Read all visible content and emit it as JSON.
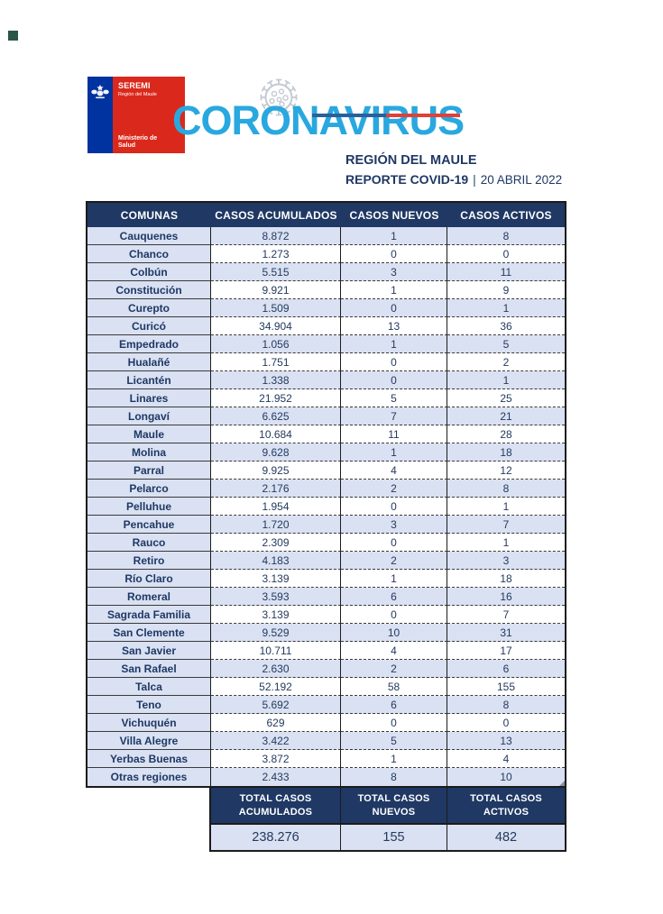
{
  "header": {
    "logo": {
      "seremi": "SEREMI",
      "region": "Región del Maule",
      "ministry": "Ministerio de\nSalud"
    },
    "brand": "CORONAVIRUS",
    "region_title": "REGIÓN DEL MAULE",
    "report_label": "REPORTE COVID-19",
    "separator": "|",
    "report_date": "20 ABRIL 2022"
  },
  "table": {
    "columns": [
      "COMUNAS",
      "CASOS ACUMULADOS",
      "CASOS NUEVOS",
      "CASOS ACTIVOS"
    ],
    "rows": [
      {
        "comuna": "Cauquenes",
        "acumulados": "8.872",
        "nuevos": "1",
        "activos": "8"
      },
      {
        "comuna": "Chanco",
        "acumulados": "1.273",
        "nuevos": "0",
        "activos": "0"
      },
      {
        "comuna": "Colbún",
        "acumulados": "5.515",
        "nuevos": "3",
        "activos": "11"
      },
      {
        "comuna": "Constitución",
        "acumulados": "9.921",
        "nuevos": "1",
        "activos": "9"
      },
      {
        "comuna": "Curepto",
        "acumulados": "1.509",
        "nuevos": "0",
        "activos": "1"
      },
      {
        "comuna": "Curicó",
        "acumulados": "34.904",
        "nuevos": "13",
        "activos": "36"
      },
      {
        "comuna": "Empedrado",
        "acumulados": "1.056",
        "nuevos": "1",
        "activos": "5"
      },
      {
        "comuna": "Hualañé",
        "acumulados": "1.751",
        "nuevos": "0",
        "activos": "2"
      },
      {
        "comuna": "Licantén",
        "acumulados": "1.338",
        "nuevos": "0",
        "activos": "1"
      },
      {
        "comuna": "Linares",
        "acumulados": "21.952",
        "nuevos": "5",
        "activos": "25"
      },
      {
        "comuna": "Longaví",
        "acumulados": "6.625",
        "nuevos": "7",
        "activos": "21"
      },
      {
        "comuna": "Maule",
        "acumulados": "10.684",
        "nuevos": "11",
        "activos": "28"
      },
      {
        "comuna": "Molina",
        "acumulados": "9.628",
        "nuevos": "1",
        "activos": "18"
      },
      {
        "comuna": "Parral",
        "acumulados": "9.925",
        "nuevos": "4",
        "activos": "12"
      },
      {
        "comuna": "Pelarco",
        "acumulados": "2.176",
        "nuevos": "2",
        "activos": "8"
      },
      {
        "comuna": "Pelluhue",
        "acumulados": "1.954",
        "nuevos": "0",
        "activos": "1"
      },
      {
        "comuna": "Pencahue",
        "acumulados": "1.720",
        "nuevos": "3",
        "activos": "7"
      },
      {
        "comuna": "Rauco",
        "acumulados": "2.309",
        "nuevos": "0",
        "activos": "1"
      },
      {
        "comuna": "Retiro",
        "acumulados": "4.183",
        "nuevos": "2",
        "activos": "3"
      },
      {
        "comuna": "Río Claro",
        "acumulados": "3.139",
        "nuevos": "1",
        "activos": "18"
      },
      {
        "comuna": "Romeral",
        "acumulados": "3.593",
        "nuevos": "6",
        "activos": "16"
      },
      {
        "comuna": "Sagrada Familia",
        "acumulados": "3.139",
        "nuevos": "0",
        "activos": "7"
      },
      {
        "comuna": "San Clemente",
        "acumulados": "9.529",
        "nuevos": "10",
        "activos": "31"
      },
      {
        "comuna": "San Javier",
        "acumulados": "10.711",
        "nuevos": "4",
        "activos": "17"
      },
      {
        "comuna": "San Rafael",
        "acumulados": "2.630",
        "nuevos": "2",
        "activos": "6"
      },
      {
        "comuna": "Talca",
        "acumulados": "52.192",
        "nuevos": "58",
        "activos": "155"
      },
      {
        "comuna": "Teno",
        "acumulados": "5.692",
        "nuevos": "6",
        "activos": "8"
      },
      {
        "comuna": "Vichuquén",
        "acumulados": "629",
        "nuevos": "0",
        "activos": "0"
      },
      {
        "comuna": "Villa Alegre",
        "acumulados": "3.422",
        "nuevos": "5",
        "activos": "13"
      },
      {
        "comuna": "Yerbas Buenas",
        "acumulados": "3.872",
        "nuevos": "1",
        "activos": "4"
      },
      {
        "comuna": "Otras regiones",
        "acumulados": "2.433",
        "nuevos": "8",
        "activos": "10"
      }
    ]
  },
  "totals": {
    "columns": [
      {
        "label_line1": "TOTAL CASOS",
        "label_line2": "ACUMULADOS",
        "value": "238.276"
      },
      {
        "label_line1": "TOTAL CASOS",
        "label_line2": "NUEVOS",
        "value": "155"
      },
      {
        "label_line1": "TOTAL CASOS",
        "label_line2": "ACTIVOS",
        "value": "482"
      }
    ]
  },
  "colors": {
    "navy": "#1F3864",
    "row_band_blue": "#D9E1F2",
    "brand_blue": "#29A8DF",
    "logo_blue": "#0032A0",
    "logo_red": "#DA291C",
    "line_blue": "#2A6099",
    "line_red": "#E04038"
  }
}
